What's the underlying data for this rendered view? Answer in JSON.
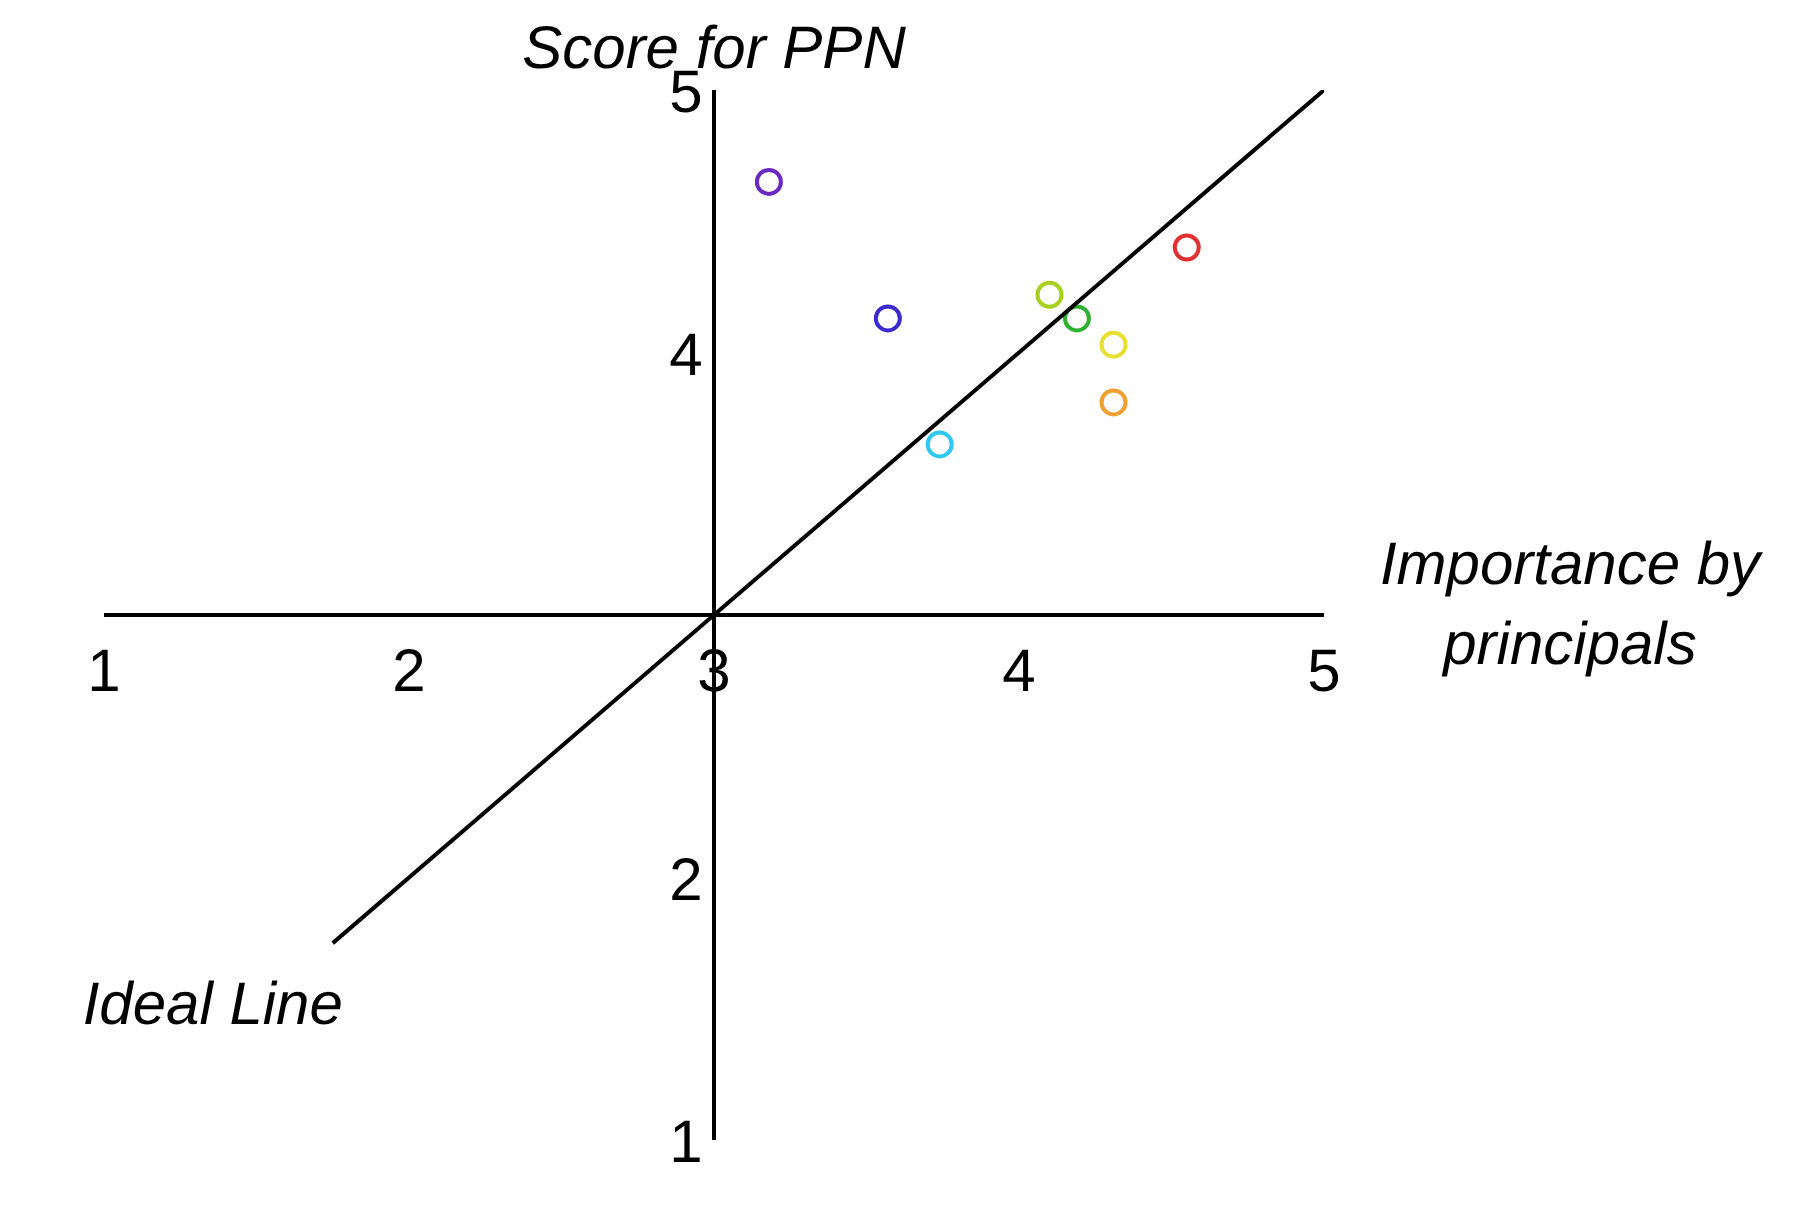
{
  "chart_data": {
    "type": "scatter",
    "xlabel": "Importance by principals",
    "ylabel": "Score for PPN",
    "xlim": [
      1,
      5
    ],
    "ylim": [
      1,
      5
    ],
    "xticks": [
      1,
      2,
      3,
      4,
      5
    ],
    "yticks": [
      1,
      2,
      4,
      5
    ],
    "series": [
      {
        "marker": "circle",
        "x": [
          3.18,
          3.57,
          3.74,
          4.1,
          4.19,
          4.31,
          4.31,
          4.55
        ],
        "values": [
          4.65,
          4.13,
          3.65,
          4.22,
          4.13,
          4.03,
          3.81,
          4.4
        ],
        "colors": [
          "#6a2ac0",
          "#3a2ad0",
          "#30c8f0",
          "#a8d020",
          "#30b030",
          "#e8e030",
          "#f0a030",
          "#e03030"
        ]
      },
      {
        "type": "line",
        "marker": "none",
        "name": "Ideal Line",
        "color": "#000000",
        "x": [
          1.75,
          5
        ],
        "values": [
          1.75,
          5
        ]
      }
    ]
  }
}
